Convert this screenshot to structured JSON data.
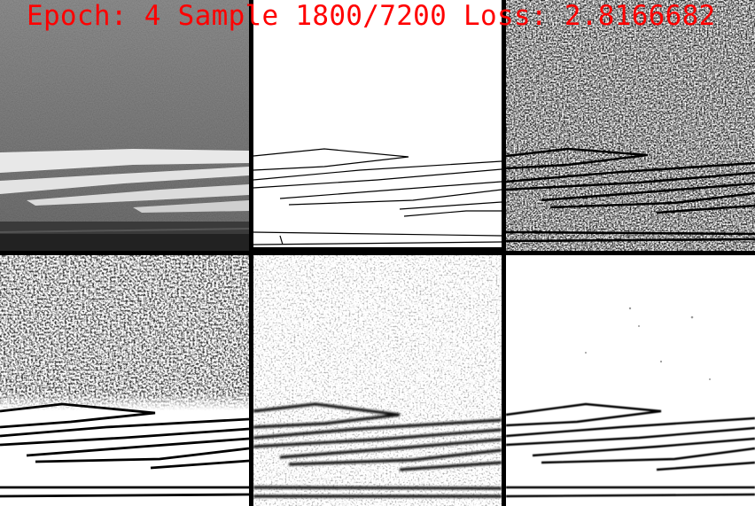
{
  "overlay": {
    "caption": "Epoch: 4 Sample 1800/7200 Loss: 2.8166682",
    "caption_color": "#ff0000"
  },
  "panels": [
    {
      "row": 1,
      "col": 1,
      "kind": "photo"
    },
    {
      "row": 1,
      "col": 2,
      "kind": "ground-truth-edges"
    },
    {
      "row": 1,
      "col": 3,
      "kind": "edge-prediction-noisy"
    },
    {
      "row": 2,
      "col": 1,
      "kind": "edge-prediction-noisy"
    },
    {
      "row": 2,
      "col": 2,
      "kind": "edge-prediction-soft"
    },
    {
      "row": 2,
      "col": 3,
      "kind": "edge-prediction-clean"
    }
  ]
}
